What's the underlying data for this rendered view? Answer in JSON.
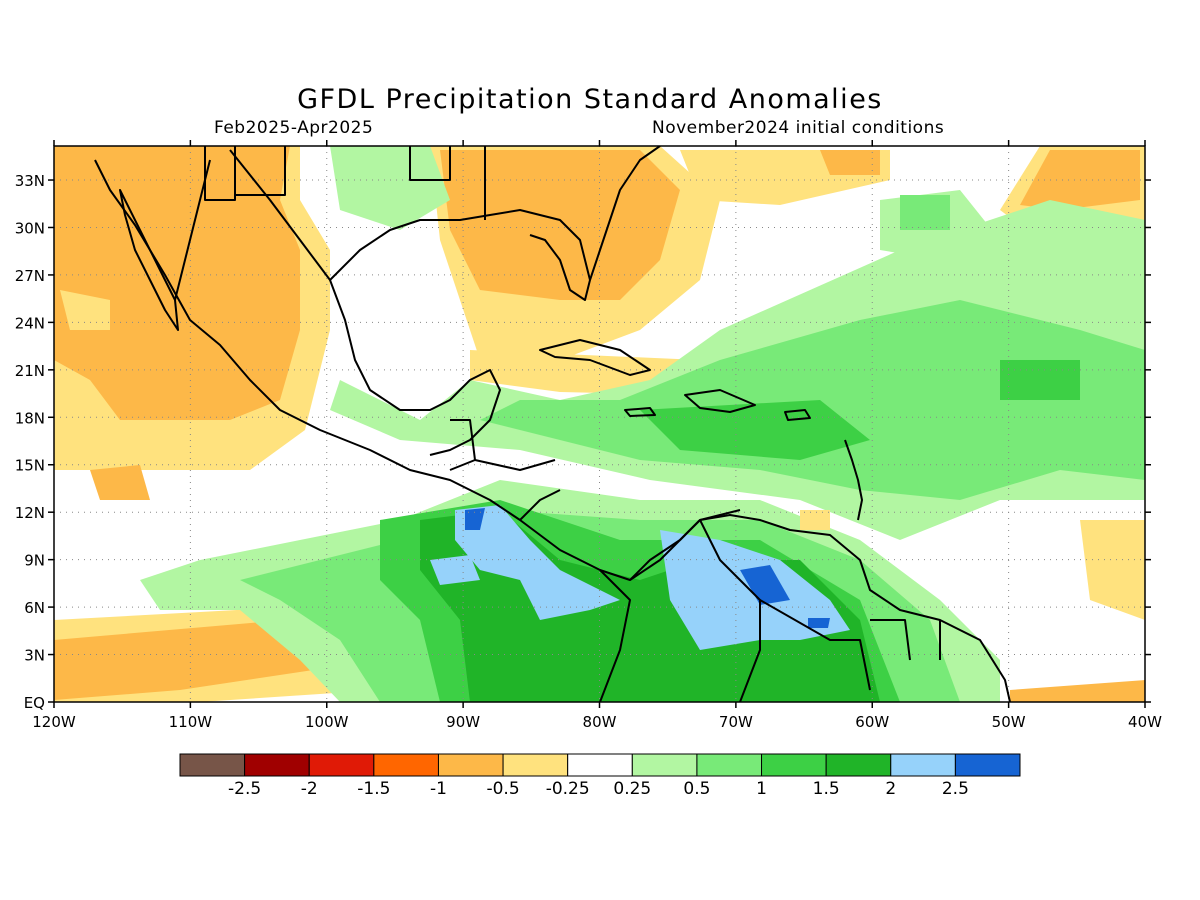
{
  "title": "GFDL Precipitation Standard Anomalies",
  "period": "Feb2025-Apr2025",
  "init": "November2024 initial conditions",
  "lat_labels": [
    "EQ",
    "3N",
    "6N",
    "9N",
    "12N",
    "15N",
    "18N",
    "21N",
    "24N",
    "27N",
    "30N",
    "33N"
  ],
  "lon_labels": [
    "120W",
    "110W",
    "100W",
    "90W",
    "80W",
    "70W",
    "60W",
    "50W",
    "40W"
  ],
  "colorbar": {
    "colors": [
      "#775548",
      "#a00000",
      "#e01a06",
      "#ff6600",
      "#fdb848",
      "#ffe27e",
      "#ffffff",
      "#b2f6a2",
      "#78ea78",
      "#3dd045",
      "#20b428",
      "#96d2fa",
      "#1664d3"
    ],
    "labels": [
      "-2.5",
      "-2",
      "-1.5",
      "-1",
      "-0.5",
      "-0.25",
      "0.25",
      "0.5",
      "1",
      "1.5",
      "2",
      "2.5"
    ]
  }
}
